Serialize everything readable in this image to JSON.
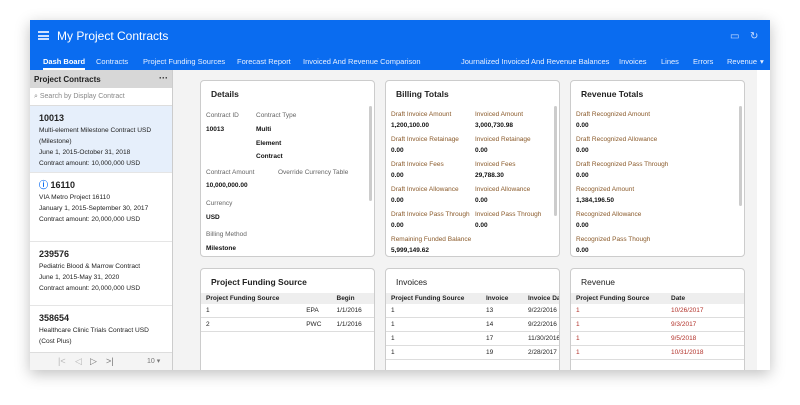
{
  "app": {
    "title": "My Project Contracts",
    "icons": [
      "menu-icon",
      "save-icon",
      "refresh-icon"
    ]
  },
  "tabs": [
    "Dash Board",
    "Contracts",
    "Project Funding Sources",
    "Forecast Report",
    "Invoiced And Revenue Comparison",
    "Journalized Invoiced And Revenue Balances",
    "Invoices",
    "Lines",
    "Errors",
    "Revenue",
    "M"
  ],
  "sidebar": {
    "title": "Project Contracts",
    "more": "···",
    "search_placeholder": "Search by Display Contract",
    "items": [
      {
        "id": "10013",
        "name": "Multi-element Milestone Contract USD (Milestone)",
        "dates": "June 1, 2015-October 31, 2018",
        "amount": "Contract amount: 10,000,000 USD"
      },
      {
        "id": "16110",
        "name": "VIA Metro Project 16110",
        "dates": "January 1, 2015-September 30, 2017",
        "amount": "Contract amount: 20,000,000 USD"
      },
      {
        "id": "239576",
        "name": "Pediatric Blood  & Marrow Contract",
        "dates": "June 1, 2015-May 31, 2020",
        "amount": "Contract amount: 20,000,000 USD"
      },
      {
        "id": "358654",
        "name": "Healthcare Clinic Trials Contract USD (Cost Plus)"
      }
    ],
    "page_size": "10 ▾"
  },
  "details": {
    "title": "Details",
    "contract_id_label": "Contract ID",
    "contract_id": "10013",
    "contract_type_label": "Contract Type",
    "contract_type": [
      "Multi",
      "Element",
      "Contract"
    ],
    "amount_label": "Contract Amount",
    "amount": "10,000,000.00",
    "override_label": "Override Currency Table",
    "currency_label": "Currency",
    "currency": "USD",
    "billing_method_label": "Billing Method",
    "billing_method": "Milestone"
  },
  "billing": {
    "title": "Billing Totals",
    "left": [
      {
        "label": "Draft Invoice Amount",
        "value": "1,200,100.00"
      },
      {
        "label": "Draft Invoice Retainage",
        "value": "0.00"
      },
      {
        "label": "Draft Invoice Fees",
        "value": "0.00"
      },
      {
        "label": "Draft Invoice Allowance",
        "value": "0.00"
      },
      {
        "label": "Draft Invoice Pass Through",
        "value": "0.00"
      },
      {
        "label": "Remaining Funded Balance",
        "value": "5,999,149.62"
      }
    ],
    "right": [
      {
        "label": "Invoiced Amount",
        "value": "3,000,730.98"
      },
      {
        "label": "Invoiced Retainage",
        "value": "0.00"
      },
      {
        "label": "Invoiced Fees",
        "value": "29,788.30"
      },
      {
        "label": "Invoiced Allowance",
        "value": "0.00"
      },
      {
        "label": "Invoiced Pass Through",
        "value": "0.00"
      }
    ]
  },
  "revenue_totals": {
    "title": "Revenue Totals",
    "items": [
      {
        "label": "Draft Recognized Amount",
        "value": "0.00"
      },
      {
        "label": "Draft Recognized Allowance",
        "value": "0.00"
      },
      {
        "label": "Draft Recognized Pass Through",
        "value": "0.00"
      },
      {
        "label": "Recognized Amount",
        "value": "1,384,196.50"
      },
      {
        "label": "Recognized Allowance",
        "value": "0.00"
      },
      {
        "label": "Recognized Pass Though",
        "value": "0.00"
      }
    ]
  },
  "funding": {
    "title": "Project Funding Source",
    "headers": [
      "Project Funding Source",
      "",
      "Begin"
    ],
    "rows": [
      [
        "1",
        "EPA",
        "1/1/2016"
      ],
      [
        "2",
        "PWC",
        "1/1/2016"
      ]
    ]
  },
  "invoices": {
    "title": "Invoices",
    "headers": [
      "Project Funding Source",
      "Invoice",
      "Invoice Da"
    ],
    "rows": [
      [
        "1",
        "13",
        "9/22/2016"
      ],
      [
        "1",
        "14",
        "9/22/2016"
      ],
      [
        "1",
        "17",
        "11/30/2016"
      ],
      [
        "1",
        "19",
        "2/28/2017"
      ]
    ]
  },
  "revenue": {
    "title": "Revenue",
    "headers": [
      "Project Funding Source",
      "Date"
    ],
    "rows": [
      [
        "1",
        "10/26/2017"
      ],
      [
        "1",
        "9/3/2017"
      ],
      [
        "1",
        "9/5/2018"
      ],
      [
        "1",
        "10/31/2018"
      ]
    ]
  }
}
